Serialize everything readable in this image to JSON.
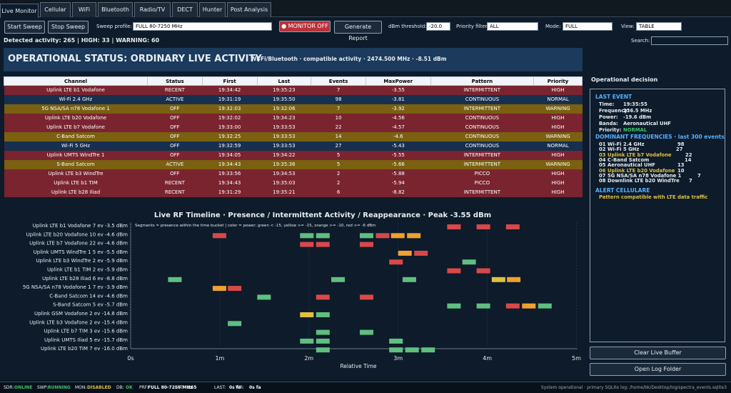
{
  "tabs": [
    "Live Monitor",
    "Cellular",
    "WiFi",
    "Bluetooth",
    "Radio/TV",
    "DECT",
    "Hunter",
    "Post Analysis"
  ],
  "toolbar": {
    "start": "Start Sweep",
    "stop": "Stop Sweep",
    "profile_label": "Sweep profile:",
    "profile_value": "FULL 80-7250 MHz",
    "monitor": "● MONITOR OFF",
    "report": "Generate Report",
    "threshold_label": "dBm threshold:",
    "threshold_value": "-20.0",
    "priority_label": "Priority filter:",
    "priority_value": "ALL",
    "mode_label": "Mode:",
    "mode_value": "FULL",
    "view_label": "View:",
    "view_value": "TABLE",
    "search_label": "Search:"
  },
  "summary": "Detected activity: 265 | HIGH: 33 | WARNING: 60",
  "banner": {
    "title": "OPERATIONAL STATUS: ORDINARY LIVE ACTIVITY",
    "subtitle": "Wi-Fi/Bluetooth · compatible activity · 2474.500 MHz · -8.51 dBm"
  },
  "table": {
    "headers": [
      "Channel",
      "Status",
      "First",
      "Last",
      "Events",
      "MaxPower",
      "Pattern",
      "Priority"
    ],
    "rows": [
      [
        "Uplink LTE b1 Vodafone",
        "RECENT",
        "19:34:42",
        "19:35:23",
        "7",
        "-3.55",
        "INTERMITTENT",
        "HIGH"
      ],
      [
        "Wi-Fi 2.4 GHz",
        "ACTIVE",
        "19:31:19",
        "19:35:50",
        "98",
        "-3.81",
        "CONTINUOUS",
        "NORMAL"
      ],
      [
        "5G NSA/SA n78 Vodafone 1",
        "OFF",
        "19:32:03",
        "19:32:06",
        "7",
        "-3.92",
        "INTERMITTENT",
        "WARNING"
      ],
      [
        "Uplink LTE b20 Vodafone",
        "OFF",
        "19:32:02",
        "19:34:23",
        "10",
        "-4.56",
        "CONTINUOUS",
        "HIGH"
      ],
      [
        "Uplink LTE b7 Vodafone",
        "OFF",
        "19:33:00",
        "19:33:53",
        "22",
        "-4.57",
        "CONTINUOUS",
        "HIGH"
      ],
      [
        "C-Band Satcom",
        "OFF",
        "19:32:25",
        "19:33:53",
        "14",
        "-4.6",
        "CONTINUOUS",
        "WARNING"
      ],
      [
        "Wi-Fi 5 GHz",
        "OFF",
        "19:32:59",
        "19:33:53",
        "27",
        "-5.43",
        "CONTINUOUS",
        "NORMAL"
      ],
      [
        "Uplink UMTS WindTre 1",
        "OFF",
        "19:34:05",
        "19:34:22",
        "5",
        "-5.55",
        "INTERMITTENT",
        "HIGH"
      ],
      [
        "S-Band Satcom",
        "ACTIVE",
        "19:34:43",
        "19:35:36",
        "5",
        "-5.66",
        "INTERMITTENT",
        "WARNING"
      ],
      [
        "Uplink LTE b3 WindTre",
        "OFF",
        "19:33:56",
        "19:34:53",
        "2",
        "-5.88",
        "PICCO",
        "HIGH"
      ],
      [
        "Uplink LTE b1 TIM",
        "RECENT",
        "19:34:43",
        "19:35:03",
        "2",
        "-5.94",
        "PICCO",
        "HIGH"
      ],
      [
        "Uplink LTE b28 Iliad",
        "RECENT",
        "19:31:29",
        "19:35:21",
        "6",
        "-8.82",
        "INTERMITTENT",
        "HIGH"
      ]
    ]
  },
  "colors": {
    "HIGH": "#7a2430",
    "NORMAL": "#17304f",
    "WARNING": "#7a6010",
    "green": "#5fbf7f",
    "yellow": "#e0c040",
    "orange": "#f0a030",
    "red": "#d94848"
  },
  "decision": {
    "title": "Operational decision",
    "last_event_h": "LAST EVENT",
    "last_event": [
      [
        "Time:",
        "19:35:55"
      ],
      [
        "Frequency:",
        "236.5 MHz"
      ],
      [
        "Power:",
        "-19.6 dBm"
      ],
      [
        "Banda:",
        "Aeronautical UHF"
      ],
      [
        "Priority:",
        "NORMAL"
      ]
    ],
    "dom_h": "DOMINANT FREQUENCIES · last 300 events",
    "dom": [
      [
        "01",
        "Wi-Fi 2.4 GHz",
        "98"
      ],
      [
        "02",
        "Wi-Fi 5 GHz",
        "27"
      ],
      [
        "03",
        "Uplink LTE b7 Vodafone",
        "22"
      ],
      [
        "04",
        "C-Band Satcom",
        "14"
      ],
      [
        "05",
        "Aeronautical UHF",
        "13"
      ],
      [
        "06",
        "Uplink LTE b20 Vodafone",
        "10"
      ],
      [
        "07",
        "5G NSA/SA n78 Vodafone 1",
        "7"
      ],
      [
        "08",
        "Downlink LTE b20 WindTre",
        "7"
      ]
    ],
    "alert_h": "ALERT CELLULARE",
    "alert": "Pattern compatible with LTE data traffic"
  },
  "buttons": {
    "clear": "Clear Live Buffer",
    "open": "Open Log Folder"
  },
  "chart_data": {
    "type": "timeline",
    "title": "Live RF Timeline · Presence / Intermittent Activity / Reappearance · Peak -3.55 dBm",
    "note": "Segments = presence within the time bucket | color = power: green < -15, yellow >= -15, orange >= -10, red >= -6 dBm",
    "xlabel": "Relative Time",
    "xticks": [
      "0s",
      "1m",
      "2m",
      "3m",
      "4m",
      "5m"
    ],
    "xlim": [
      0,
      5.06
    ],
    "rows": [
      {
        "label": "Uplink LTE b1 Vodafone  7 ev  -3.5 dBm",
        "segs": [
          [
            3.55,
            "red"
          ],
          [
            3.88,
            "red"
          ],
          [
            4.21,
            "red"
          ]
        ]
      },
      {
        "label": "Uplink LTE b20 Vodafone  10 ev  -4.6 dBm",
        "segs": [
          [
            0.92,
            "red"
          ],
          [
            1.9,
            "green"
          ],
          [
            2.08,
            "green"
          ],
          [
            2.57,
            "green"
          ],
          [
            2.75,
            "red"
          ],
          [
            2.92,
            "orange"
          ],
          [
            3.1,
            "orange"
          ]
        ]
      },
      {
        "label": "Uplink LTE b7 Vodafone  22 ev  -4.6 dBm",
        "segs": [
          [
            1.9,
            "red"
          ],
          [
            2.08,
            "red"
          ],
          [
            2.57,
            "red"
          ]
        ]
      },
      {
        "label": "Uplink UMTS WindTre 1  5 ev  -5.5 dBm",
        "segs": [
          [
            3.0,
            "orange"
          ],
          [
            3.18,
            "red"
          ]
        ]
      },
      {
        "label": "Uplink LTE b3 WindTre  2 ev  -5.9 dBm",
        "segs": [
          [
            2.9,
            "red"
          ],
          [
            3.72,
            "green"
          ]
        ]
      },
      {
        "label": "Uplink LTE b1 TIM  2 ev  -5.9 dBm",
        "segs": [
          [
            3.55,
            "red"
          ],
          [
            3.88,
            "red"
          ]
        ]
      },
      {
        "label": "Uplink LTE b28 Iliad  6 ev  -8.8 dBm",
        "segs": [
          [
            0.42,
            "green"
          ],
          [
            2.25,
            "green"
          ],
          [
            3.05,
            "green"
          ],
          [
            4.05,
            "yellow"
          ],
          [
            4.22,
            "orange"
          ]
        ]
      },
      {
        "label": "5G NSA/SA n78 Vodafone 1  7 ev  -3.9 dBm",
        "segs": [
          [
            0.92,
            "orange"
          ],
          [
            1.09,
            "red"
          ]
        ]
      },
      {
        "label": "C-Band Satcom  14 ev  -4.6 dBm",
        "segs": [
          [
            1.42,
            "green"
          ],
          [
            2.08,
            "red"
          ],
          [
            2.57,
            "red"
          ]
        ]
      },
      {
        "label": "S-Band Satcom  5 ev  -5.7 dBm",
        "segs": [
          [
            3.55,
            "green"
          ],
          [
            3.88,
            "green"
          ],
          [
            4.21,
            "red"
          ],
          [
            4.39,
            "orange"
          ],
          [
            4.57,
            "green"
          ]
        ]
      },
      {
        "label": "Uplink GSM Vodafone  2 ev  -14.8 dBm",
        "segs": [
          [
            1.9,
            "yellow"
          ],
          [
            2.08,
            "green"
          ]
        ]
      },
      {
        "label": "Uplink LTE b3 Vodafone  2 ev  -15.4 dBm",
        "segs": [
          [
            1.09,
            "green"
          ]
        ]
      },
      {
        "label": "Uplink LTE b7 TIM  3 ev  -15.6 dBm",
        "segs": [
          [
            2.08,
            "green"
          ],
          [
            2.57,
            "green"
          ]
        ]
      },
      {
        "label": "Uplink UMTS Iliad  5 ev  -15.7 dBm",
        "segs": [
          [
            1.9,
            "green"
          ],
          [
            2.08,
            "green"
          ],
          [
            2.9,
            "green"
          ]
        ]
      },
      {
        "label": "Uplink LTE b20 TIM  7 ev  -16.0 dBm",
        "segs": [
          [
            2.08,
            "green"
          ],
          [
            2.9,
            "green"
          ],
          [
            3.08,
            "green"
          ],
          [
            3.26,
            "green"
          ]
        ]
      }
    ]
  },
  "statusbar": [
    [
      "SDR:",
      "ONLINE",
      "#3ec46d"
    ],
    [
      "SWP:",
      "RUNNING",
      "#3ec46d"
    ],
    [
      "MON:",
      "DISABLED",
      "#e0c040"
    ],
    [
      "DB:",
      "OK",
      "#3ec46d"
    ],
    [
      "PRF:",
      "FULL 80-7250 MHz",
      "#ffffff"
    ],
    [
      "EVT:",
      "265",
      "#ffffff"
    ],
    [
      "LAST:",
      "0s fa",
      "#ffffff"
    ],
    [
      "WR:",
      "0s fa",
      "#ffffff"
    ]
  ],
  "status_right": "System operational · primary SQLite log: /home/bk/Desktop/log/spectra_events.sqlite3"
}
